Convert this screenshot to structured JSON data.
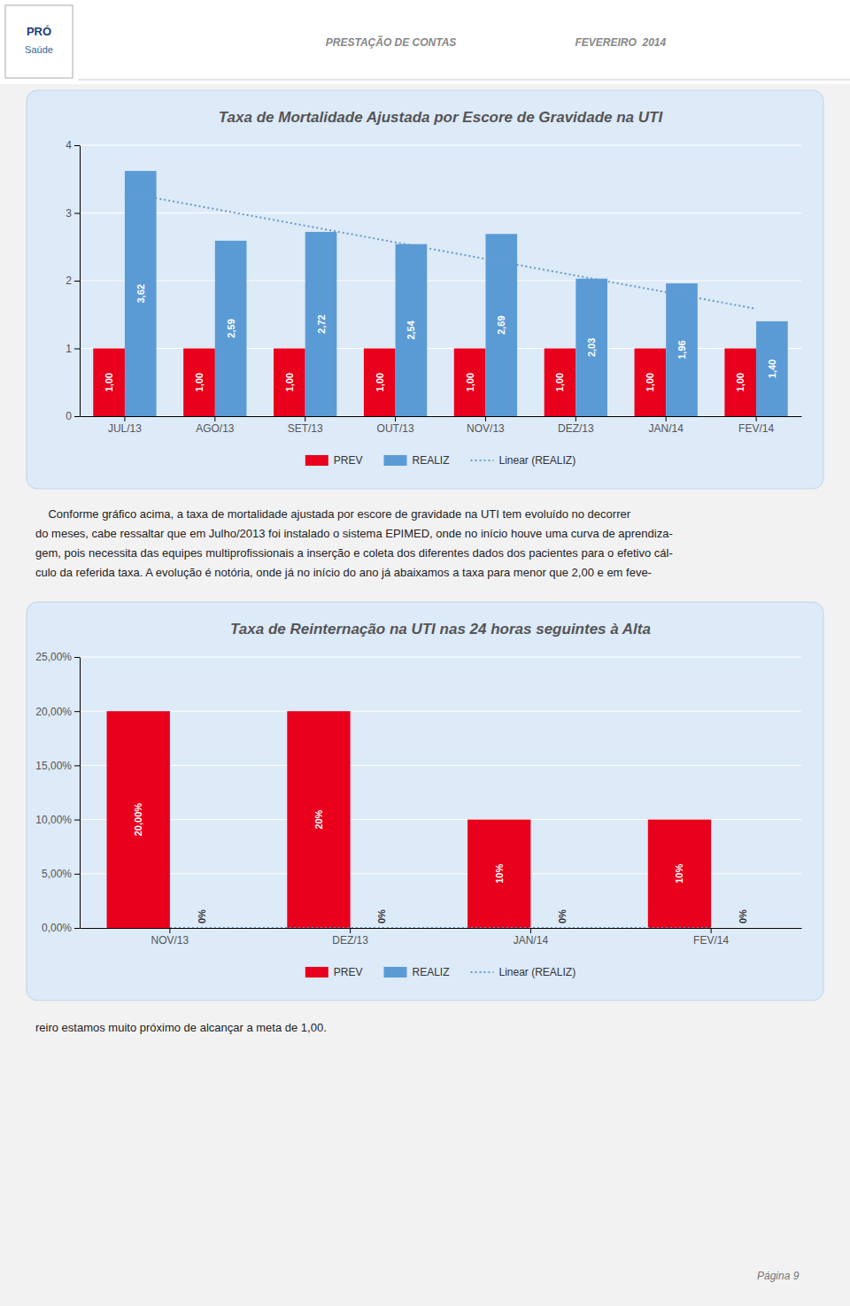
{
  "chart_data": [
    {
      "type": "bar",
      "title": "Taxa de Mortalidade Ajustada por Escore de Gravidade na UTI",
      "annotations": [
        "PRÓ",
        "Saúde",
        "PRESTAÇÃO DE CONTAS",
        "FEVEREIRO  2014",
        "    Conforme gráfico acima, a taxa de mortalidade ajustada por escore de gravidade na UTI tem evoluído no decorrer",
        "do meses, cabe ressaltar que em Julho/2013 foi instalado o sistema EPIMED, onde no início houve uma curva de aprendiza-",
        "gem, pois necessita das equipes multiprofissionais a inserção e coleta dos diferentes dados dos pacientes para o efetivo cál-",
        "culo da referida taxa. A evolução é notória, onde já no início do ano já abaixamos a taxa para menor que 2,00 e em feve-"
      ],
      "categories": [
        "JUL/13",
        "AGO/13",
        "SET/13",
        "OUT/13",
        "NOV/13",
        "DEZ/13",
        "JAN/14",
        "FEV/14"
      ],
      "series": [
        {
          "name": "PREV",
          "color": "#e8001c",
          "values": [
            1.0,
            1.0,
            1.0,
            1.0,
            1.0,
            1.0,
            1.0,
            1.0
          ],
          "value_labels": [
            "1,00",
            "1,00",
            "1,00",
            "1,00",
            "1,00",
            "1,00",
            "1,00",
            "1,00"
          ]
        },
        {
          "name": "REALIZ",
          "color": "#5b9bd5",
          "values": [
            3.62,
            2.59,
            2.72,
            2.54,
            2.69,
            2.03,
            1.96,
            1.4
          ],
          "value_labels": [
            "3,62",
            "2,59",
            "2,72",
            "2,54",
            "2,69",
            "2,03",
            "1,96",
            "1,40"
          ]
        },
        {
          "name": "Linear (REALIZ)",
          "type": "line",
          "line_style": "dotted",
          "color": "#6699cc",
          "values": [
            3.3025,
            3.0571,
            2.8118,
            2.5664,
            2.3211,
            2.0757,
            1.8304,
            1.585
          ]
        }
      ],
      "ylim": [
        0,
        4
      ],
      "yticks": [
        0,
        1,
        2,
        3,
        4
      ],
      "grid": true,
      "legend": "bottom",
      "data_labels": true
    },
    {
      "type": "bar",
      "title": "Taxa de Reinternação na UTI nas 24 horas seguintes à Alta",
      "annotations": [
        "reiro estamos muito próximo de alcançar a meta de 1,00.",
        "Página 9"
      ],
      "categories": [
        "NOV/13",
        "DEZ/13",
        "JAN/14",
        "FEV/14"
      ],
      "series": [
        {
          "name": "PREV",
          "color": "#e8001c",
          "values": [
            0.2,
            0.2,
            0.1,
            0.1
          ],
          "value_labels": [
            "20,00%",
            "20%",
            "10%",
            "10%"
          ]
        },
        {
          "name": "REALIZ",
          "color": "#5b9bd5",
          "values": [
            0.0,
            0.0,
            0.0,
            0.0
          ],
          "value_labels": [
            "0%",
            "0%",
            "0%",
            "0%"
          ]
        },
        {
          "name": "Linear (REALIZ)",
          "type": "line",
          "line_style": "dotted",
          "color": "#6699cc",
          "values": [
            0.0,
            0.0,
            0.0,
            0.0
          ]
        }
      ],
      "ylim": [
        0,
        0.25
      ],
      "yticks": [
        {
          "value": 0.0,
          "label": "0,00%"
        },
        {
          "value": 0.05,
          "label": "5,00%"
        },
        {
          "value": 0.1,
          "label": "10,00%"
        },
        {
          "value": 0.15,
          "label": "15,00%"
        },
        {
          "value": 0.2,
          "label": "20,00%"
        },
        {
          "value": 0.25,
          "label": "25,00%"
        }
      ],
      "grid": true,
      "legend": "bottom",
      "data_labels": true
    }
  ]
}
